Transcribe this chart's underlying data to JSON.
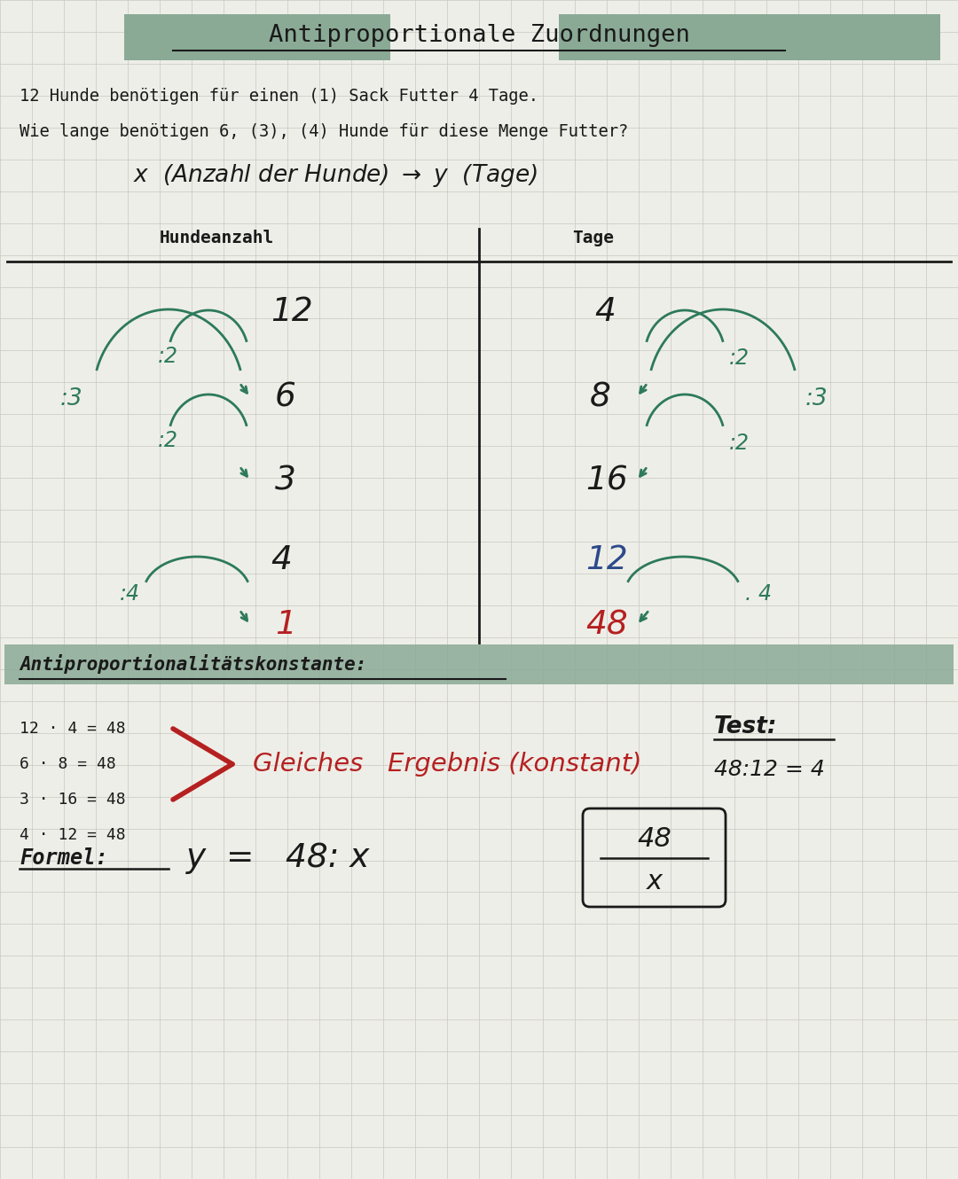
{
  "title": "Antiproportionale Zuordnungen",
  "bg_color": "#eeeee8",
  "grid_color": "#c8c8c0",
  "green_color": "#2d7a5a",
  "dark_red": "#b52020",
  "blue_color": "#2c4a8a",
  "black_color": "#1a1a1a",
  "header_bg": "#8aaa96",
  "line1": "12 Hunde benötigen für einen (1) Sack Futter 4 Tage.",
  "line2": "Wie lange benötigen 6, (3), (4) Hunde für diese Menge Futter?",
  "col1_header": "Hundeanzahl",
  "col2_header": "Tage",
  "section2_title": "Antiproportionalitätskonstante:",
  "equations": [
    "12 · 4 = 48",
    "6 · 8 = 48",
    "3 · 16 = 48",
    "4 · 12 = 48"
  ],
  "gleiches_text": "Gleiches   Ergebnis (konstant)",
  "test_label": "Test:",
  "test_eq": "48:12 = 4",
  "formel_label": "Formel:",
  "formel_eq": "y  =   48: x"
}
